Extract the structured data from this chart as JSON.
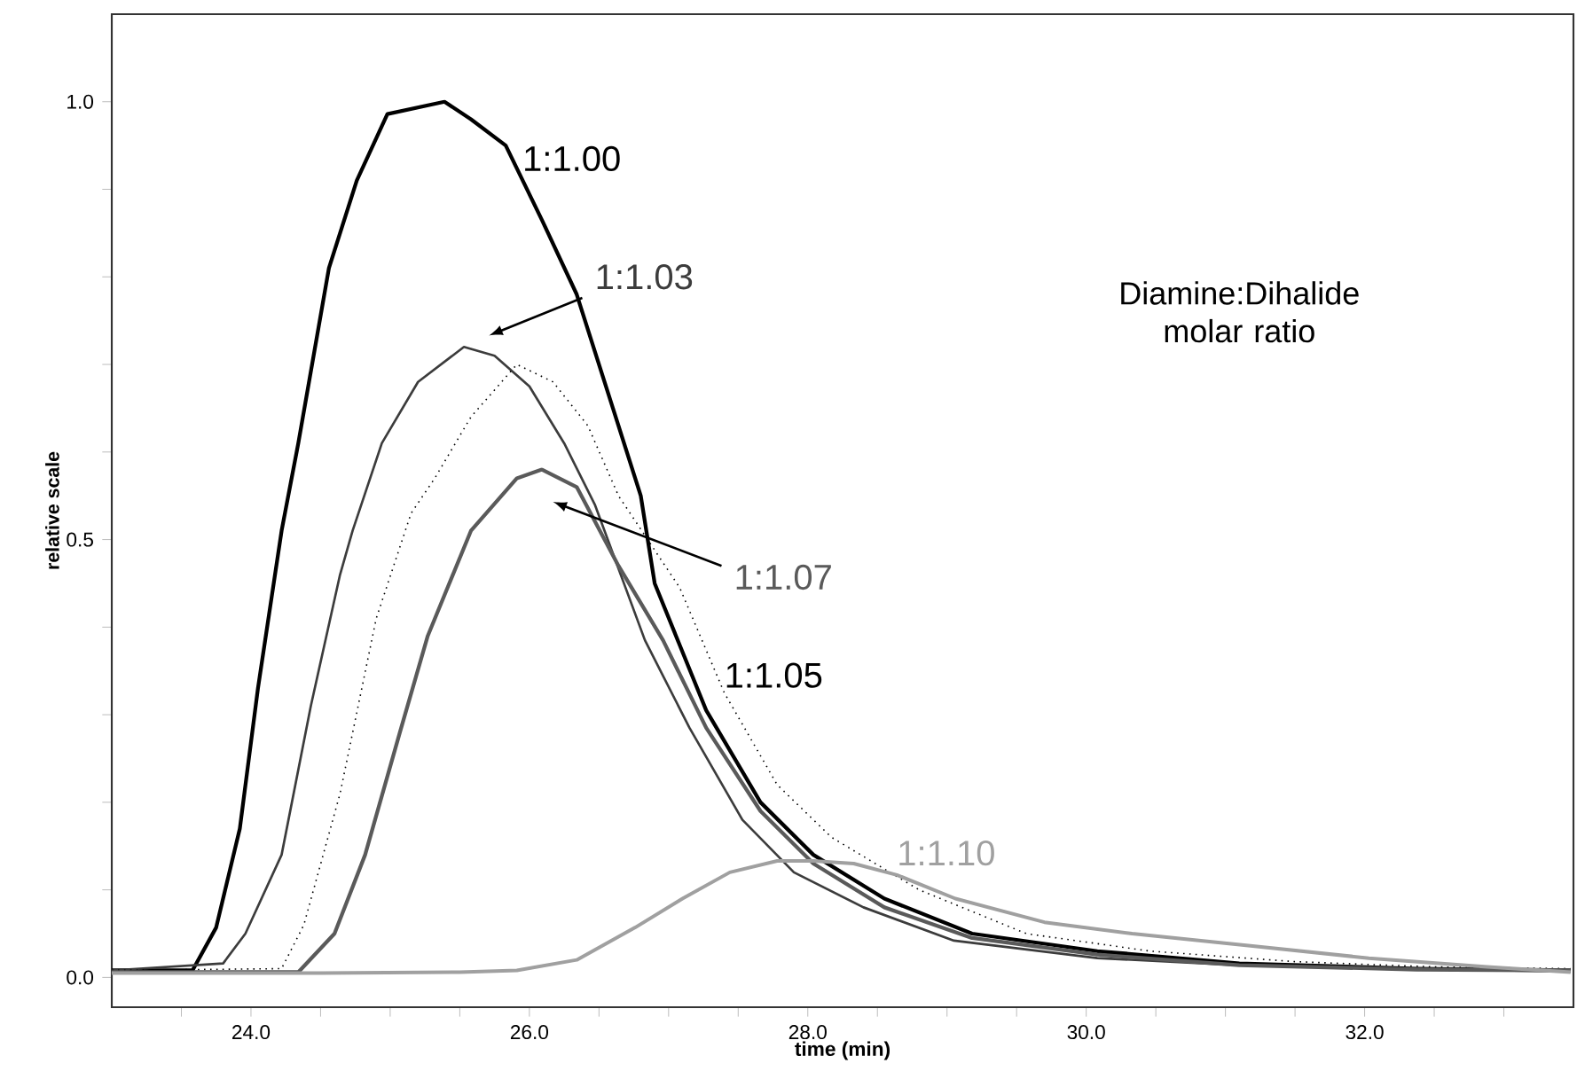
{
  "chart_data": {
    "type": "line",
    "xlabel": "time (min)",
    "ylabel": "relative scale",
    "xlim": [
      23.0,
      33.5
    ],
    "ylim": [
      -0.034,
      1.1
    ],
    "xticks": [
      {
        "value": 23.5,
        "label": null
      },
      {
        "value": 24,
        "label": "24.0"
      },
      {
        "value": 24.5,
        "label": null
      },
      {
        "value": 25,
        "label": null
      },
      {
        "value": 25.5,
        "label": null
      },
      {
        "value": 26,
        "label": "26.0"
      },
      {
        "value": 26.5,
        "label": null
      },
      {
        "value": 27,
        "label": null
      },
      {
        "value": 27.5,
        "label": null
      },
      {
        "value": 28,
        "label": "28.0"
      },
      {
        "value": 28.5,
        "label": null
      },
      {
        "value": 29,
        "label": null
      },
      {
        "value": 29.5,
        "label": null
      },
      {
        "value": 30,
        "label": "30.0"
      },
      {
        "value": 30.5,
        "label": null
      },
      {
        "value": 31,
        "label": null
      },
      {
        "value": 31.5,
        "label": null
      },
      {
        "value": 32,
        "label": "32.0"
      },
      {
        "value": 32.5,
        "label": null
      },
      {
        "value": 33,
        "label": null
      }
    ],
    "yticks": [
      {
        "value": 0,
        "label": "0.0"
      },
      {
        "value": 0.1,
        "label": null
      },
      {
        "value": 0.2,
        "label": null
      },
      {
        "value": 0.3,
        "label": null
      },
      {
        "value": 0.4,
        "label": null
      },
      {
        "value": 0.5,
        "label": "0.5"
      },
      {
        "value": 0.6,
        "label": null
      },
      {
        "value": 0.7,
        "label": null
      },
      {
        "value": 0.8,
        "label": null
      },
      {
        "value": 0.9,
        "label": null
      },
      {
        "value": 1.0,
        "label": "1.0"
      }
    ],
    "grid": false,
    "legend": false,
    "marker": "none",
    "line_style": "solid",
    "annotations": [
      "Diamine:Dihalide molar ratio"
    ],
    "series": [
      {
        "name": "1:1.00",
        "color": "#000000",
        "x": [
          23.0,
          23.58,
          23.75,
          23.92,
          24.05,
          24.22,
          24.34,
          24.56,
          24.76,
          24.98,
          25.39,
          25.58,
          25.83,
          26.09,
          26.34,
          26.6,
          26.8,
          26.9,
          27.27,
          27.66,
          28.04,
          28.55,
          29.18,
          30.08,
          31.1,
          32.37,
          33.48
        ],
        "values": [
          0.008,
          0.008,
          0.057,
          0.17,
          0.33,
          0.51,
          0.61,
          0.81,
          0.91,
          0.986,
          1.0,
          0.98,
          0.95,
          0.865,
          0.78,
          0.65,
          0.55,
          0.45,
          0.305,
          0.2,
          0.14,
          0.09,
          0.05,
          0.03,
          0.016,
          0.01,
          0.008
        ]
      },
      {
        "name": "1:1.03",
        "color": "#3c3c3c",
        "x": [
          23.0,
          23.8,
          23.96,
          24.22,
          24.43,
          24.64,
          24.73,
          24.94,
          25.2,
          25.53,
          25.75,
          26.0,
          26.25,
          26.47,
          26.83,
          27.15,
          27.53,
          27.9,
          28.4,
          29.05,
          30.08,
          31.1,
          32.37,
          33.48
        ],
        "values": [
          0.008,
          0.016,
          0.05,
          0.14,
          0.31,
          0.46,
          0.51,
          0.61,
          0.68,
          0.72,
          0.71,
          0.675,
          0.61,
          0.54,
          0.385,
          0.285,
          0.18,
          0.12,
          0.08,
          0.042,
          0.022,
          0.014,
          0.009,
          0.008
        ]
      },
      {
        "name": "1:1.05",
        "color": "#000000",
        "line_style": "dotted",
        "x": [
          23.0,
          24.22,
          24.38,
          24.64,
          24.9,
          25.15,
          25.32,
          25.58,
          25.91,
          26.17,
          26.42,
          26.64,
          27.08,
          27.4,
          27.78,
          28.17,
          28.8,
          29.57,
          30.46,
          31.5,
          32.5,
          33.48
        ],
        "values": [
          0.008,
          0.01,
          0.06,
          0.21,
          0.41,
          0.53,
          0.57,
          0.64,
          0.7,
          0.68,
          0.63,
          0.55,
          0.445,
          0.325,
          0.22,
          0.16,
          0.1,
          0.05,
          0.03,
          0.018,
          0.012,
          0.01
        ]
      },
      {
        "name": "1:1.07",
        "color": "#5a5a5a",
        "x": [
          23.0,
          24.34,
          24.6,
          24.82,
          25.07,
          25.27,
          25.58,
          25.91,
          26.09,
          26.34,
          26.64,
          26.96,
          27.27,
          27.66,
          28.04,
          28.55,
          29.18,
          30.08,
          31.1,
          32.37,
          33.48
        ],
        "values": [
          0.006,
          0.006,
          0.05,
          0.14,
          0.28,
          0.39,
          0.51,
          0.57,
          0.58,
          0.56,
          0.47,
          0.385,
          0.285,
          0.19,
          0.13,
          0.08,
          0.045,
          0.026,
          0.014,
          0.009,
          0.008
        ]
      },
      {
        "name": "1:1.10",
        "color": "#a0a0a0",
        "x": [
          23.0,
          24.5,
          25.5,
          25.91,
          26.34,
          26.76,
          27.1,
          27.44,
          27.78,
          28.04,
          28.33,
          28.64,
          29.06,
          29.7,
          30.33,
          31.18,
          32.03,
          32.88,
          33.48
        ],
        "values": [
          0.005,
          0.005,
          0.006,
          0.008,
          0.02,
          0.057,
          0.09,
          0.12,
          0.133,
          0.133,
          0.13,
          0.117,
          0.09,
          0.063,
          0.05,
          0.036,
          0.022,
          0.012,
          0.006
        ]
      }
    ]
  }
}
